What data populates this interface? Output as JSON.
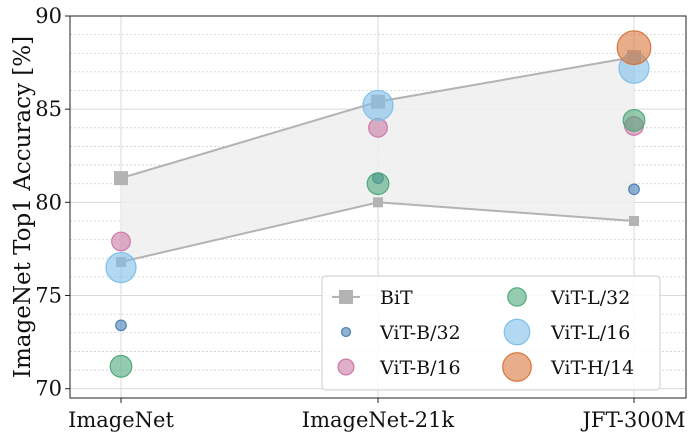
{
  "chart_data": {
    "type": "scatter",
    "categories": [
      "ImageNet",
      "ImageNet-21k",
      "JFT-300M"
    ],
    "ylabel": "ImageNet Top1 Accuracy [%]",
    "xlabel": "",
    "title": "",
    "ylim": [
      69.5,
      90
    ],
    "yticks": [
      70,
      75,
      80,
      85,
      90
    ],
    "grid": true,
    "legend_position": "bottom-right",
    "bit_band": {
      "name": "BiT",
      "upper": [
        81.3,
        85.4,
        87.8
      ],
      "lower": [
        76.8,
        80.0,
        79.0
      ],
      "color": "#b3b3b3",
      "fill": "#eeeeee"
    },
    "series": [
      {
        "name": "ViT-B/32",
        "values": [
          73.4,
          81.3,
          80.7
        ],
        "color": "#4a7fb5",
        "marker_scale": 0.35
      },
      {
        "name": "ViT-B/16",
        "values": [
          77.9,
          84.0,
          84.1
        ],
        "color": "#cc79a7",
        "marker_scale": 0.62
      },
      {
        "name": "ViT-L/32",
        "values": [
          71.2,
          81.0,
          84.4
        ],
        "color": "#4fa97a",
        "marker_scale": 0.72
      },
      {
        "name": "ViT-L/16",
        "values": [
          76.5,
          85.2,
          87.2
        ],
        "color": "#7fbfe8",
        "marker_scale": 1.0
      },
      {
        "name": "ViT-H/14",
        "values": [
          null,
          null,
          88.3
        ],
        "color": "#d9763e",
        "marker_scale": 1.12
      }
    ],
    "legend_order": [
      "BiT",
      "ViT-L/32",
      "ViT-B/32",
      "ViT-L/16",
      "ViT-B/16",
      "ViT-H/14"
    ]
  }
}
